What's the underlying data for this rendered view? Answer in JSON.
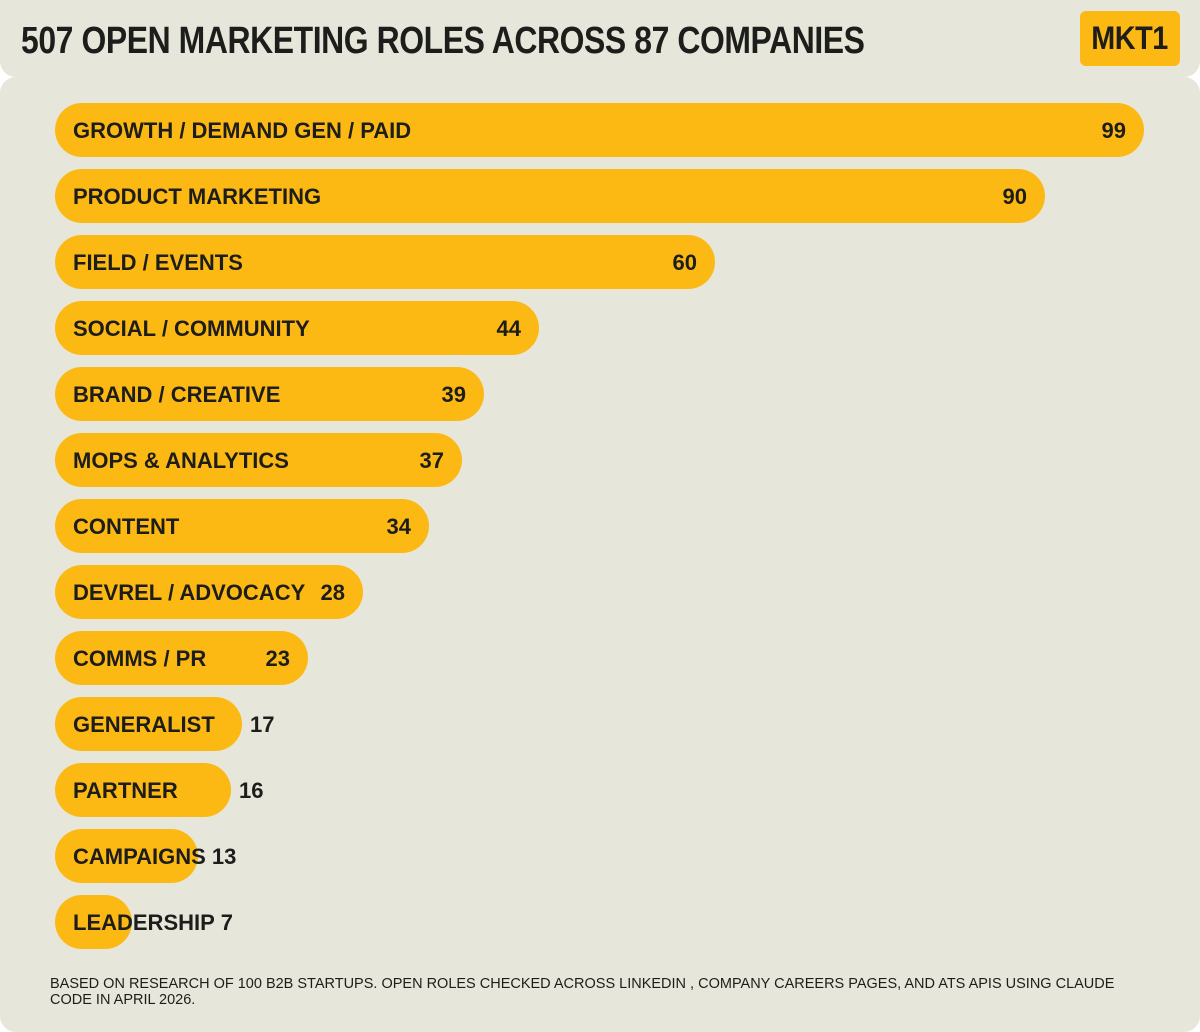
{
  "header": {
    "title": "507 OPEN MARKETING ROLES ACROSS 87 COMPANIES",
    "logo": "MKT1"
  },
  "colors": {
    "bar": "#fdb913",
    "background": "#e7e6da",
    "text": "#1d1d1b"
  },
  "chart_data": {
    "type": "bar",
    "orientation": "horizontal",
    "title": "507 OPEN MARKETING ROLES ACROSS 87 COMPANIES",
    "xlabel": "",
    "ylabel": "",
    "xlim": [
      0,
      99
    ],
    "grid": false,
    "legend": "none",
    "categories": [
      "GROWTH / DEMAND GEN / PAID",
      "PRODUCT MARKETING",
      "FIELD / EVENTS",
      "SOCIAL / COMMUNITY",
      "BRAND / CREATIVE",
      "MOPS & ANALYTICS",
      "CONTENT",
      "DEVREL / ADVOCACY",
      "COMMS / PR",
      "GENERALIST",
      "PARTNER",
      "CAMPAIGNS",
      "LEADERSHIP"
    ],
    "values": [
      99,
      90,
      60,
      44,
      39,
      37,
      34,
      28,
      23,
      17,
      16,
      13,
      7
    ]
  },
  "footnote": "BASED ON RESEARCH OF 100 B2B STARTUPS. OPEN ROLES CHECKED ACROSS LINKEDIN , COMPANY CAREERS PAGES, AND ATS APIS USING CLAUDE CODE IN APRIL 2026."
}
